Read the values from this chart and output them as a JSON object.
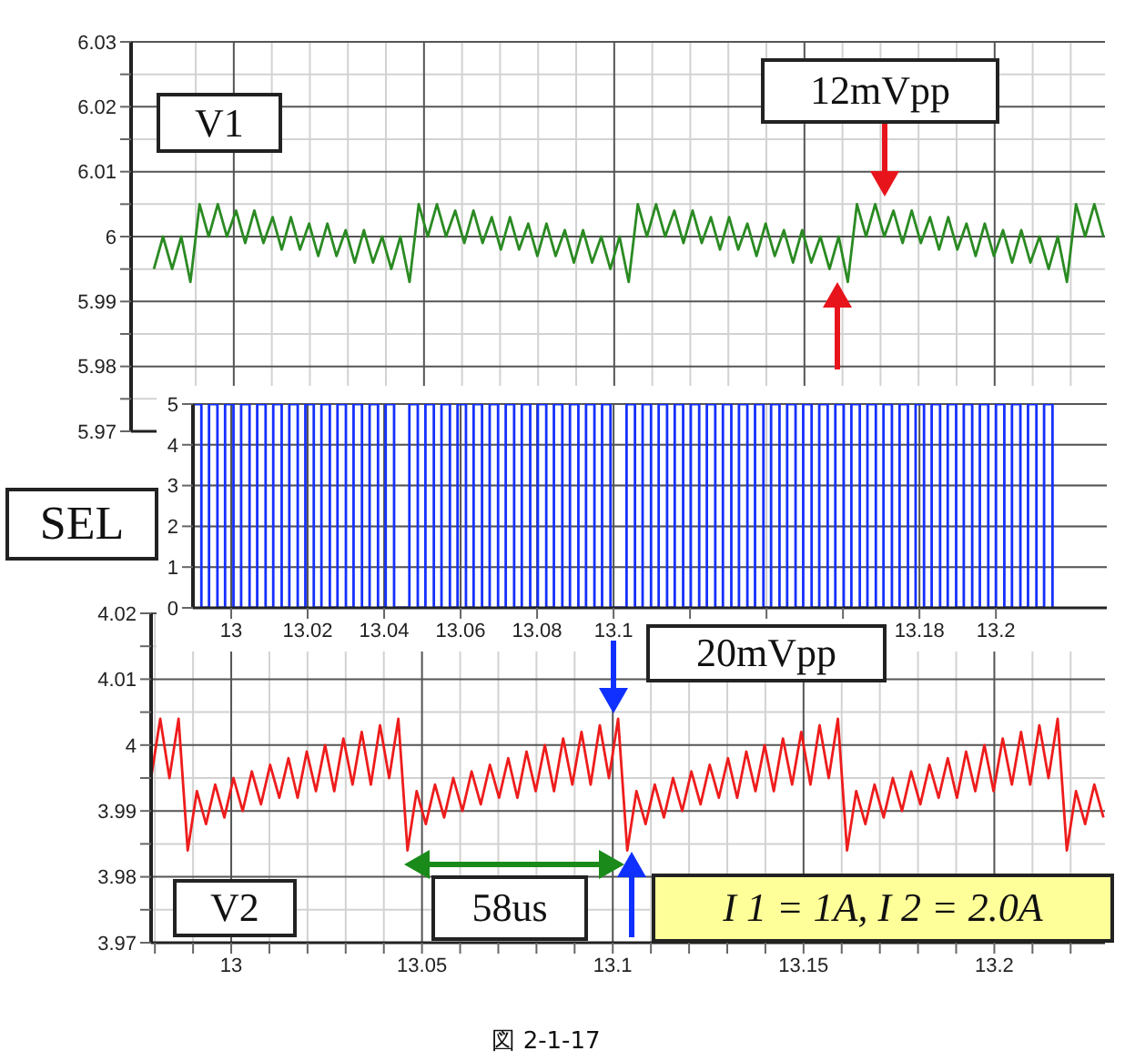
{
  "chart_data": [
    {
      "type": "line",
      "color": "#2a8a22",
      "annotations": [
        "V1",
        "12mVpp"
      ],
      "grid": true,
      "tick_labels": "y",
      "xlim": [
        12.973,
        13.229
      ],
      "xticks": [
        {
          "value": 12.99,
          "label": null
        },
        13,
        {
          "value": 13.01,
          "label": null
        },
        {
          "value": 13.02,
          "label": null
        },
        {
          "value": 13.03,
          "label": null
        },
        {
          "value": 13.04,
          "label": null
        },
        13.05,
        {
          "value": 13.06,
          "label": null
        },
        {
          "value": 13.07,
          "label": null
        },
        {
          "value": 13.08,
          "label": null
        },
        {
          "value": 13.09,
          "label": null
        },
        13.1,
        {
          "value": 13.11,
          "label": null
        },
        {
          "value": 13.12,
          "label": null
        },
        {
          "value": 13.13,
          "label": null
        },
        {
          "value": 13.14,
          "label": null
        },
        13.15,
        {
          "value": 13.16,
          "label": null
        },
        {
          "value": 13.17,
          "label": null
        },
        {
          "value": 13.18,
          "label": null
        },
        {
          "value": 13.19,
          "label": null
        },
        13.2,
        {
          "value": 13.21,
          "label": null
        },
        {
          "value": 13.22,
          "label": null
        }
      ],
      "ylim": [
        5.97,
        6.03
      ],
      "yticks": [
        5.97,
        {
          "value": 5.975,
          "label": null
        },
        5.98,
        {
          "value": 5.985,
          "label": null
        },
        5.99,
        {
          "value": 5.995,
          "label": null
        },
        6,
        {
          "value": 6.005,
          "label": null
        },
        6.01,
        {
          "value": 6.015,
          "label": null
        },
        6.02,
        {
          "value": 6.025,
          "label": null
        },
        6.03
      ],
      "x": [
        12.979,
        12.9814,
        12.9838,
        12.9862,
        12.9886,
        12.991,
        12.9934,
        12.9958,
        12.9982,
        13.0006,
        13.003,
        13.0054,
        13.0078,
        13.0102,
        13.0126,
        13.015,
        13.0174,
        13.0198,
        13.0222,
        13.0246,
        13.027,
        13.0294,
        13.0318,
        13.0342,
        13.0366,
        13.039,
        13.0414,
        13.0438,
        13.0462,
        13.0486,
        13.051,
        13.0534,
        13.0558,
        13.0582,
        13.0606,
        13.063,
        13.0654,
        13.0678,
        13.0702,
        13.0726,
        13.075,
        13.0774,
        13.0798,
        13.0822,
        13.0846,
        13.087,
        13.0894,
        13.0918,
        13.0942,
        13.0966,
        13.099,
        13.1014,
        13.1038,
        13.1062,
        13.1086,
        13.111,
        13.1134,
        13.1158,
        13.1182,
        13.1206,
        13.123,
        13.1254,
        13.1278,
        13.1302,
        13.1326,
        13.135,
        13.1374,
        13.1398,
        13.1422,
        13.1446,
        13.147,
        13.1494,
        13.1518,
        13.1542,
        13.1566,
        13.159,
        13.1614,
        13.1638,
        13.1662,
        13.1686,
        13.171,
        13.1734,
        13.1758,
        13.1782,
        13.1806,
        13.183,
        13.1854,
        13.1878,
        13.1902,
        13.1926,
        13.195,
        13.1974,
        13.1998,
        13.2022,
        13.2046,
        13.207,
        13.2094,
        13.2118,
        13.2142,
        13.2166,
        13.219,
        13.2214,
        13.2238,
        13.2262,
        13.2286
      ],
      "values": [
        5.995,
        6.0,
        5.995,
        6.0,
        5.993,
        6.005,
        6.0,
        6.005,
        6.0,
        6.004,
        5.999,
        6.004,
        5.999,
        6.003,
        5.998,
        6.003,
        5.998,
        6.002,
        5.997,
        6.002,
        5.997,
        6.001,
        5.996,
        6.001,
        5.996,
        6.0,
        5.995,
        6.0,
        5.993,
        6.005,
        6.0,
        6.005,
        6.0,
        6.004,
        5.999,
        6.004,
        5.999,
        6.003,
        5.998,
        6.003,
        5.998,
        6.002,
        5.997,
        6.002,
        5.997,
        6.001,
        5.996,
        6.001,
        5.996,
        6.0,
        5.995,
        6.0,
        5.993,
        6.005,
        6.0,
        6.005,
        6.0,
        6.004,
        5.999,
        6.004,
        5.999,
        6.003,
        5.998,
        6.003,
        5.998,
        6.002,
        5.997,
        6.002,
        5.997,
        6.001,
        5.996,
        6.001,
        5.996,
        6.0,
        5.995,
        6.0,
        5.993,
        6.005,
        6.0,
        6.005,
        6.0,
        6.004,
        5.999,
        6.004,
        5.999,
        6.003,
        5.998,
        6.003,
        5.998,
        6.002,
        5.997,
        6.002,
        5.997,
        6.001,
        5.996,
        6.001,
        5.996,
        6.0,
        5.995,
        6.0,
        5.993,
        6.005,
        6.0,
        6.005,
        6.0
      ]
    },
    {
      "type": "step",
      "color": "#1530ff",
      "annotations": [
        "SEL"
      ],
      "grid": true,
      "xlim": [
        12.99,
        13.229
      ],
      "xticks": [
        13,
        13.02,
        13.04,
        13.06,
        13.08,
        13.1,
        {
          "value": 13.12,
          "label": null
        },
        {
          "value": 13.14,
          "label": null
        },
        {
          "value": 13.16,
          "label": null
        },
        13.18,
        13.2
      ],
      "ylim": [
        0,
        5
      ],
      "yticks": [
        0,
        1,
        2,
        3,
        4,
        5
      ],
      "x": [
        12.99,
        12.99,
        12.9922,
        12.9942,
        12.9964,
        12.9984,
        13.0006,
        13.0026,
        13.0048,
        13.0068,
        13.009,
        13.011,
        13.0132,
        13.0152,
        13.0174,
        13.0194,
        13.0216,
        13.0236,
        13.0258,
        13.0278,
        13.03,
        13.032,
        13.0342,
        13.0362,
        13.0384,
        13.0404,
        13.0426,
        13.0466,
        13.0488,
        13.0508,
        13.053,
        13.055,
        13.0572,
        13.0592,
        13.0614,
        13.0634,
        13.0656,
        13.0676,
        13.0698,
        13.0718,
        13.074,
        13.076,
        13.0782,
        13.0802,
        13.0824,
        13.0844,
        13.0866,
        13.0886,
        13.0908,
        13.0928,
        13.095,
        13.097,
        13.0992,
        13.1034,
        13.1056,
        13.1076,
        13.1098,
        13.1118,
        13.114,
        13.116,
        13.1182,
        13.1202,
        13.1224,
        13.1244,
        13.1266,
        13.1286,
        13.1308,
        13.1328,
        13.135,
        13.137,
        13.1392,
        13.1412,
        13.1434,
        13.1454,
        13.1476,
        13.1496,
        13.1518,
        13.1538,
        13.156,
        13.158,
        13.1602,
        13.1622,
        13.1644,
        13.1664,
        13.1686,
        13.1706,
        13.1728,
        13.1748,
        13.177,
        13.179,
        13.1812,
        13.1832,
        13.1854,
        13.1874,
        13.1896,
        13.1916,
        13.1938,
        13.1958,
        13.198,
        13.2,
        13.2022,
        13.2042,
        13.2064,
        13.2084,
        13.2106,
        13.2126,
        13.2148
      ],
      "values": [
        0,
        5,
        0,
        5,
        0,
        5,
        0,
        5,
        0,
        5,
        0,
        5,
        0,
        5,
        0,
        5,
        0,
        5,
        0,
        5,
        0,
        5,
        0,
        5,
        0,
        5,
        0,
        5,
        0,
        5,
        0,
        5,
        0,
        5,
        0,
        5,
        0,
        5,
        0,
        5,
        0,
        5,
        0,
        5,
        0,
        5,
        0,
        5,
        0,
        5,
        0,
        5,
        0,
        5,
        0,
        5,
        0,
        5,
        0,
        5,
        0,
        5,
        0,
        5,
        0,
        5,
        0,
        5,
        0,
        5,
        0,
        5,
        0,
        5,
        0,
        5,
        0,
        5,
        0,
        5,
        0,
        5,
        0,
        5,
        0,
        5,
        0,
        5,
        0,
        5,
        0,
        5,
        0,
        5,
        0,
        5,
        0,
        5,
        0,
        5,
        0,
        5,
        0,
        5,
        0,
        5,
        0
      ]
    },
    {
      "type": "line",
      "color": "#ee1c1c",
      "annotations": [
        "20mVpp",
        "V2",
        "58us",
        "I 1 = 1A, I 2 = 2.0A",
        "図 2-1-17"
      ],
      "grid": true,
      "xlim": [
        12.979,
        13.229
      ],
      "xticks": [
        {
          "value": 12.98,
          "label": null
        },
        {
          "value": 12.99,
          "label": null
        },
        13,
        {
          "value": 13.01,
          "label": null
        },
        {
          "value": 13.02,
          "label": null
        },
        {
          "value": 13.03,
          "label": null
        },
        {
          "value": 13.04,
          "label": null
        },
        13.05,
        {
          "value": 13.06,
          "label": null
        },
        {
          "value": 13.07,
          "label": null
        },
        {
          "value": 13.08,
          "label": null
        },
        {
          "value": 13.09,
          "label": null
        },
        13.1,
        {
          "value": 13.11,
          "label": null
        },
        {
          "value": 13.12,
          "label": null
        },
        {
          "value": 13.13,
          "label": null
        },
        {
          "value": 13.14,
          "label": null
        },
        13.15,
        {
          "value": 13.16,
          "label": null
        },
        {
          "value": 13.17,
          "label": null
        },
        {
          "value": 13.18,
          "label": null
        },
        {
          "value": 13.19,
          "label": null
        },
        13.2,
        {
          "value": 13.21,
          "label": null
        },
        {
          "value": 13.22,
          "label": null
        }
      ],
      "ylim": [
        3.97,
        4.02
      ],
      "yticks": [
        3.97,
        {
          "value": 3.975,
          "label": null
        },
        3.98,
        {
          "value": 3.985,
          "label": null
        },
        3.99,
        {
          "value": 3.995,
          "label": null
        },
        4,
        {
          "value": 4.005,
          "label": null
        },
        4.01,
        {
          "value": 4.015,
          "label": null
        },
        4.02
      ],
      "x": [
        12.979,
        12.9814,
        12.9838,
        12.9862,
        12.9886,
        12.991,
        12.9934,
        12.9958,
        12.9982,
        13.0006,
        13.003,
        13.0054,
        13.0078,
        13.0102,
        13.0126,
        13.015,
        13.0174,
        13.0198,
        13.0222,
        13.0246,
        13.027,
        13.0294,
        13.0318,
        13.0342,
        13.0366,
        13.039,
        13.0414,
        13.0438,
        13.0462,
        13.0486,
        13.051,
        13.0534,
        13.0558,
        13.0582,
        13.0606,
        13.063,
        13.0654,
        13.0678,
        13.0702,
        13.0726,
        13.075,
        13.0774,
        13.0798,
        13.0822,
        13.0846,
        13.087,
        13.0894,
        13.0918,
        13.0942,
        13.0966,
        13.099,
        13.1014,
        13.1038,
        13.1062,
        13.1086,
        13.111,
        13.1134,
        13.1158,
        13.1182,
        13.1206,
        13.123,
        13.1254,
        13.1278,
        13.1302,
        13.1326,
        13.135,
        13.1374,
        13.1398,
        13.1422,
        13.1446,
        13.147,
        13.1494,
        13.1518,
        13.1542,
        13.1566,
        13.159,
        13.1614,
        13.1638,
        13.1662,
        13.1686,
        13.171,
        13.1734,
        13.1758,
        13.1782,
        13.1806,
        13.183,
        13.1854,
        13.1878,
        13.1902,
        13.1926,
        13.195,
        13.1974,
        13.1998,
        13.2022,
        13.2046,
        13.207,
        13.2094,
        13.2118,
        13.2142,
        13.2166,
        13.219,
        13.2214,
        13.2238,
        13.2262,
        13.2286
      ],
      "values": [
        3.995,
        4.004,
        3.995,
        4.004,
        3.984,
        3.993,
        3.988,
        3.994,
        3.989,
        3.995,
        3.99,
        3.996,
        3.991,
        3.997,
        3.992,
        3.998,
        3.992,
        3.999,
        3.993,
        4.0,
        3.993,
        4.001,
        3.994,
        4.002,
        3.994,
        4.003,
        3.995,
        4.004,
        3.984,
        3.993,
        3.988,
        3.994,
        3.989,
        3.995,
        3.99,
        3.996,
        3.991,
        3.997,
        3.992,
        3.998,
        3.992,
        3.999,
        3.993,
        4.0,
        3.993,
        4.001,
        3.994,
        4.002,
        3.994,
        4.003,
        3.995,
        4.004,
        3.984,
        3.993,
        3.988,
        3.994,
        3.989,
        3.995,
        3.99,
        3.996,
        3.991,
        3.997,
        3.992,
        3.998,
        3.992,
        3.999,
        3.993,
        4.0,
        3.993,
        4.001,
        3.994,
        4.002,
        3.994,
        4.003,
        3.995,
        4.004,
        3.984,
        3.993,
        3.988,
        3.994,
        3.989,
        3.995,
        3.99,
        3.996,
        3.991,
        3.997,
        3.992,
        3.998,
        3.992,
        3.999,
        3.993,
        4.0,
        3.993,
        4.001,
        3.994,
        4.002,
        3.994,
        4.003,
        3.995,
        4.004,
        3.984,
        3.993,
        3.988,
        3.994,
        3.989
      ]
    }
  ]
}
